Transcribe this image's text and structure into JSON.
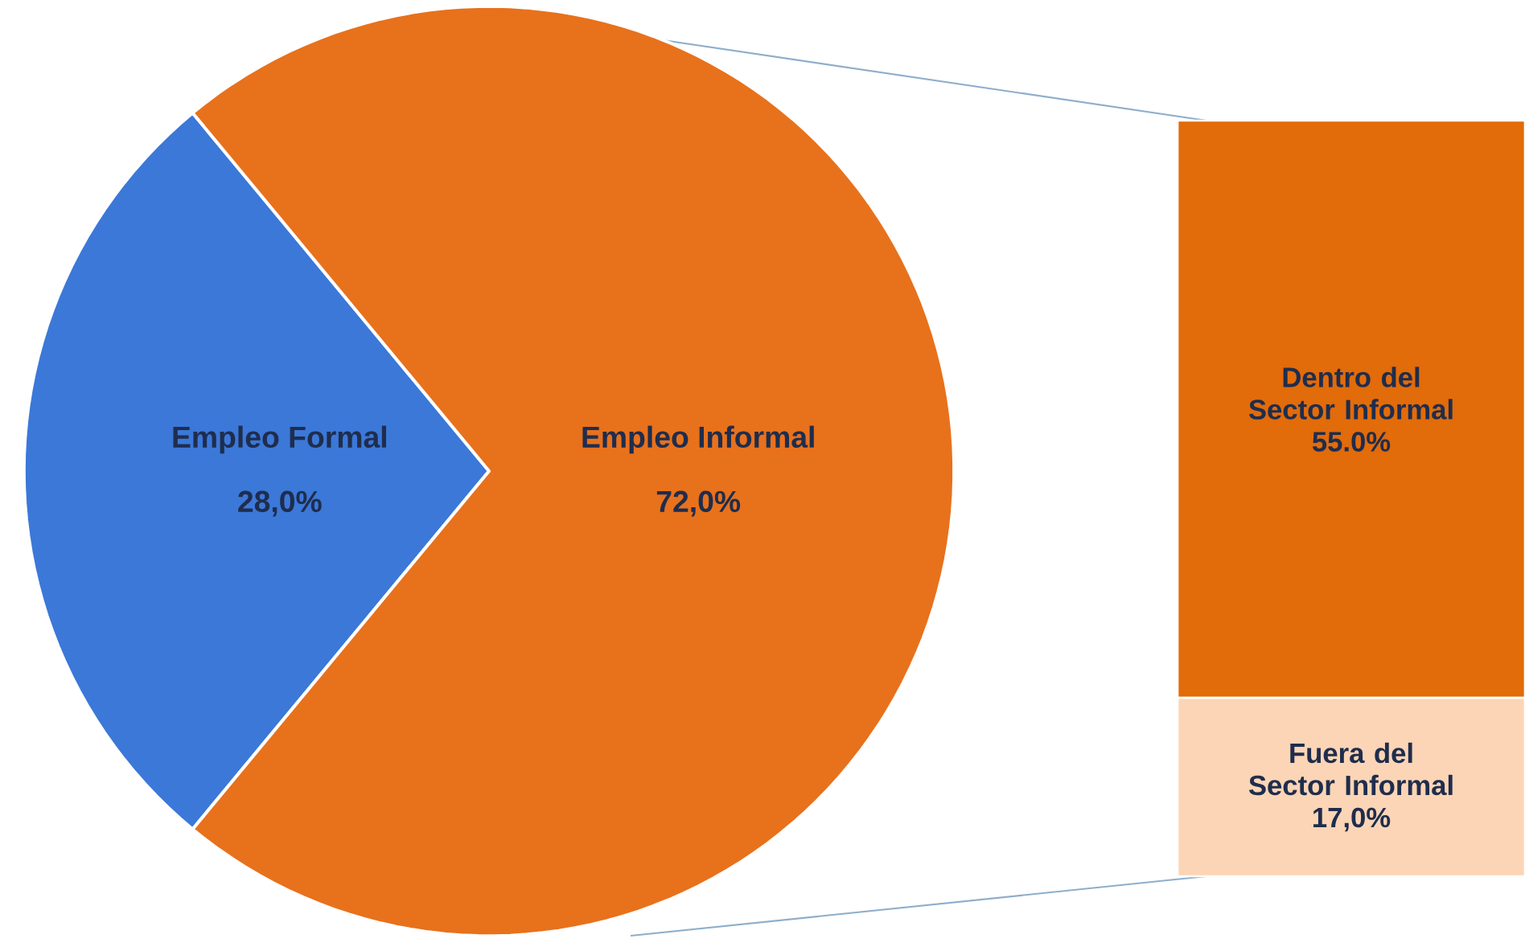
{
  "chart_data": [
    {
      "type": "pie",
      "categories": [
        "Empleo Formal",
        "Empleo Informal"
      ],
      "values": [
        28,
        72
      ],
      "value_labels": [
        "28,0%",
        "72,0%"
      ],
      "colors": [
        "#3b78d8",
        "#e8711c"
      ]
    },
    {
      "type": "bar",
      "stacked": true,
      "categories": [
        null
      ],
      "series": [
        {
          "name": "Fuera del Sector Informal",
          "color": "#fbd5b5",
          "values": [
            17.0
          ],
          "value_labels": [
            "17,0%"
          ]
        },
        {
          "name": "Dentro del Sector Informal",
          "color": "#e26b0a",
          "values": [
            55.0
          ],
          "value_labels": [
            "55.0%"
          ]
        }
      ]
    }
  ]
}
